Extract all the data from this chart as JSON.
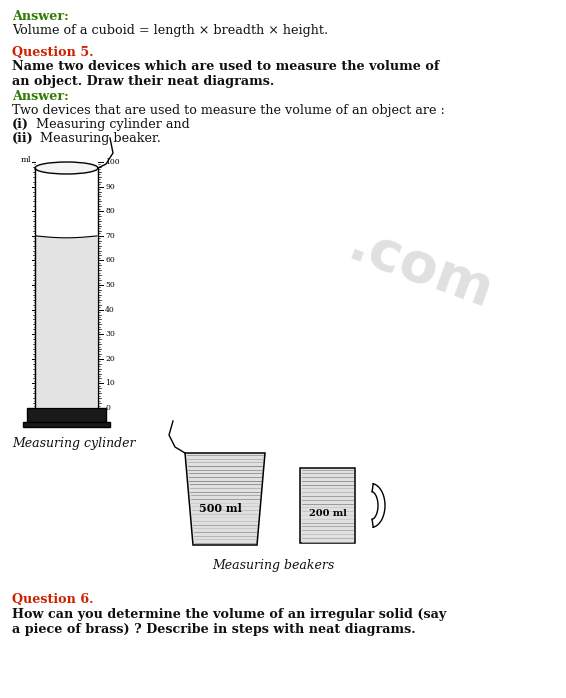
{
  "bg_color": "#ffffff",
  "answer_color": "#2e7d00",
  "question_color": "#cc2200",
  "text_color": "#111111",
  "line1": "Answer:",
  "line2": "Volume of a cuboid = length × breadth × height.",
  "line3": "Question 5.",
  "line4": "Name two devices which are used to measure the volume of",
  "line5": "an object. Draw their neat diagrams.",
  "line6": "Answer:",
  "line7": "Two devices that are used to measure the volume of an object are :",
  "line8_b": "(i)",
  "line8": " Measuring cylinder and",
  "line9_b": "(ii)",
  "line9": " Measuring beaker.",
  "label_cyl": "Measuring cylinder",
  "label_beakers": "Measuring beakers",
  "line10": "Question 6.",
  "line11": "How can you determine the volume of an irregular solid (say",
  "line12": "a piece of brass) ? Describe in steps with neat diagrams.",
  "watermark": ".com"
}
